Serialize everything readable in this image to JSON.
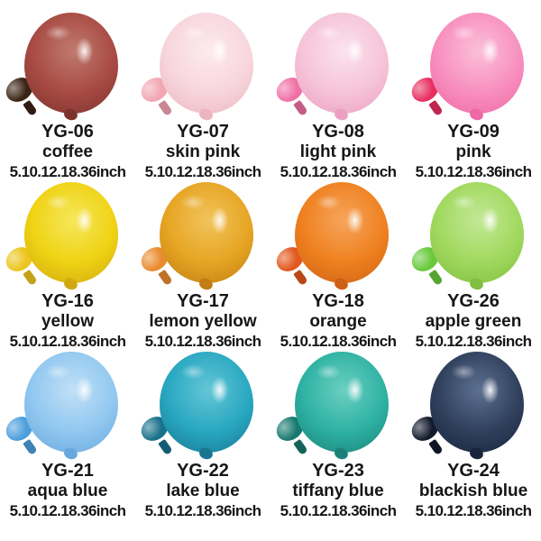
{
  "page": {
    "background": "#ffffff",
    "text_color": "#161616"
  },
  "items": [
    {
      "code": "YG-06",
      "name": "coffee",
      "sizes": "5.10.12.18.36inch",
      "colors": {
        "light": "#C07A6F",
        "main": "#A84B44",
        "dark": "#7C332D",
        "small": "#3A2214"
      }
    },
    {
      "code": "YG-07",
      "name": "skin pink",
      "sizes": "5.10.12.18.36inch",
      "colors": {
        "light": "#FCEBEE",
        "main": "#F8D6DD",
        "dark": "#EBB4C0",
        "small": "#F2A6B2"
      }
    },
    {
      "code": "YG-08",
      "name": "light pink",
      "sizes": "5.10.12.18.36inch",
      "colors": {
        "light": "#FBE3ED",
        "main": "#F6C4D8",
        "dark": "#EC9FC2",
        "small": "#F070A6"
      }
    },
    {
      "code": "YG-09",
      "name": "pink",
      "sizes": "5.10.12.18.36inch",
      "colors": {
        "light": "#FBC0DA",
        "main": "#F890BF",
        "dark": "#EE68A4",
        "small": "#E82F62"
      }
    },
    {
      "code": "YG-16",
      "name": "yellow",
      "sizes": "5.10.12.18.36inch",
      "colors": {
        "light": "#F6E75C",
        "main": "#EFD314",
        "dark": "#D0A90F",
        "small": "#EDC51E"
      }
    },
    {
      "code": "YG-17",
      "name": "lemon yellow",
      "sizes": "5.10.12.18.36inch",
      "colors": {
        "light": "#F1C45C",
        "main": "#E7A524",
        "dark": "#C07E14",
        "small": "#E98B2D"
      }
    },
    {
      "code": "YG-18",
      "name": "orange",
      "sizes": "5.10.12.18.36inch",
      "colors": {
        "light": "#F6A55C",
        "main": "#EF8120",
        "dark": "#CE6115",
        "small": "#E1571C"
      }
    },
    {
      "code": "YG-26",
      "name": "apple green",
      "sizes": "5.10.12.18.36inch",
      "colors": {
        "light": "#C3E897",
        "main": "#A1D95F",
        "dark": "#7FBF41",
        "small": "#67C93C"
      }
    },
    {
      "code": "YG-21",
      "name": "aqua blue",
      "sizes": "5.10.12.18.36inch",
      "colors": {
        "light": "#C1E0F7",
        "main": "#92C8F0",
        "dark": "#68A8DE",
        "small": "#4D9EDD"
      }
    },
    {
      "code": "YG-22",
      "name": "lake blue",
      "sizes": "5.10.12.18.36inch",
      "colors": {
        "light": "#64C6D6",
        "main": "#29A8C1",
        "dark": "#187691",
        "small": "#187089"
      }
    },
    {
      "code": "YG-23",
      "name": "tiffany blue",
      "sizes": "5.10.12.18.36inch",
      "colors": {
        "light": "#6BCFC2",
        "main": "#2EB2A3",
        "dark": "#1B8278",
        "small": "#17796F"
      }
    },
    {
      "code": "YG-24",
      "name": "blackish blue",
      "sizes": "5.10.12.18.36inch",
      "colors": {
        "light": "#5D7191",
        "main": "#30405D",
        "dark": "#18243B",
        "small": "#121A2C"
      }
    }
  ]
}
